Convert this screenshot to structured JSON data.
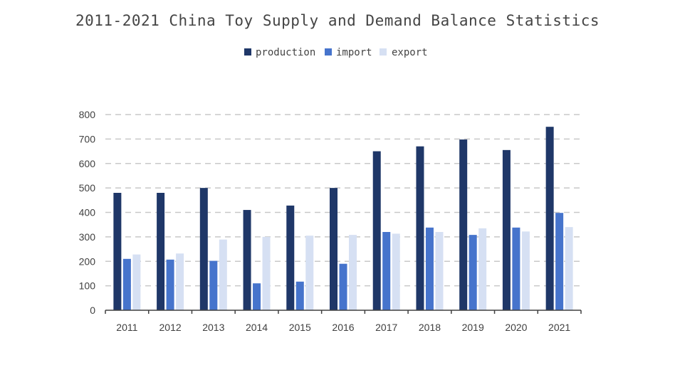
{
  "chart_data": {
    "type": "bar",
    "title": "2011-2021 China Toy Supply and Demand Balance Statistics",
    "xlabel": "",
    "ylabel": "",
    "categories": [
      "2011",
      "2012",
      "2013",
      "2014",
      "2015",
      "2016",
      "2017",
      "2018",
      "2019",
      "2020",
      "2021"
    ],
    "series": [
      {
        "name": "production",
        "color": "#1f3768",
        "values": [
          480,
          480,
          500,
          410,
          428,
          500,
          650,
          670,
          698,
          655,
          750
        ]
      },
      {
        "name": "import",
        "color": "#4674cc",
        "values": [
          210,
          207,
          202,
          110,
          117,
          190,
          320,
          338,
          308,
          338,
          398
        ]
      },
      {
        "name": "export",
        "color": "#d6e0f3",
        "values": [
          228,
          232,
          289,
          300,
          305,
          308,
          313,
          320,
          335,
          322,
          340
        ]
      }
    ],
    "ylim": [
      0,
      800
    ],
    "yticks": [
      0,
      100,
      200,
      300,
      400,
      500,
      600,
      700,
      800
    ],
    "grid": "horizontal dashed",
    "legend_position": "top-center"
  }
}
